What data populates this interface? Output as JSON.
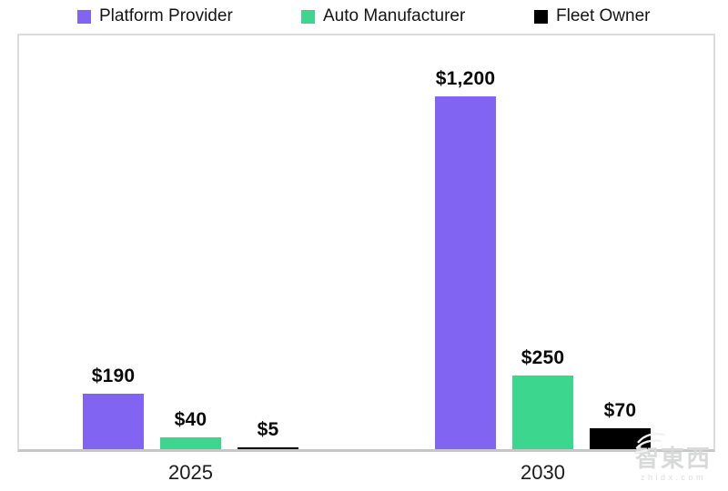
{
  "chart_data": {
    "type": "bar",
    "title": "",
    "xlabel": "",
    "ylabel": "",
    "categories": [
      "2025",
      "2030"
    ],
    "series": [
      {
        "name": "Platform Provider",
        "color": "#8164F2",
        "values": [
          190,
          1200
        ],
        "value_labels": [
          "$190",
          "$1,200"
        ]
      },
      {
        "name": "Auto Manufacturer",
        "color": "#3DD68E",
        "values": [
          40,
          250
        ],
        "value_labels": [
          "$40",
          "$250"
        ]
      },
      {
        "name": "Fleet Owner",
        "color": "#000000",
        "values": [
          5,
          70
        ],
        "value_labels": [
          "$5",
          "$70"
        ]
      }
    ],
    "ylim": [
      0,
      1400
    ],
    "grid": false,
    "axis_color": "#c7c7c7",
    "frame_color": "#dcdcdc",
    "legend_position": "top",
    "value_prefix": "$"
  },
  "legend": {
    "items": [
      {
        "label": "Platform Provider",
        "color": "#8164F2"
      },
      {
        "label": "Auto Manufacturer",
        "color": "#3DD68E"
      },
      {
        "label": "Fleet Owner",
        "color": "#000000"
      }
    ]
  },
  "watermark": {
    "text": "智東西",
    "subtext": "zhidx.com"
  }
}
